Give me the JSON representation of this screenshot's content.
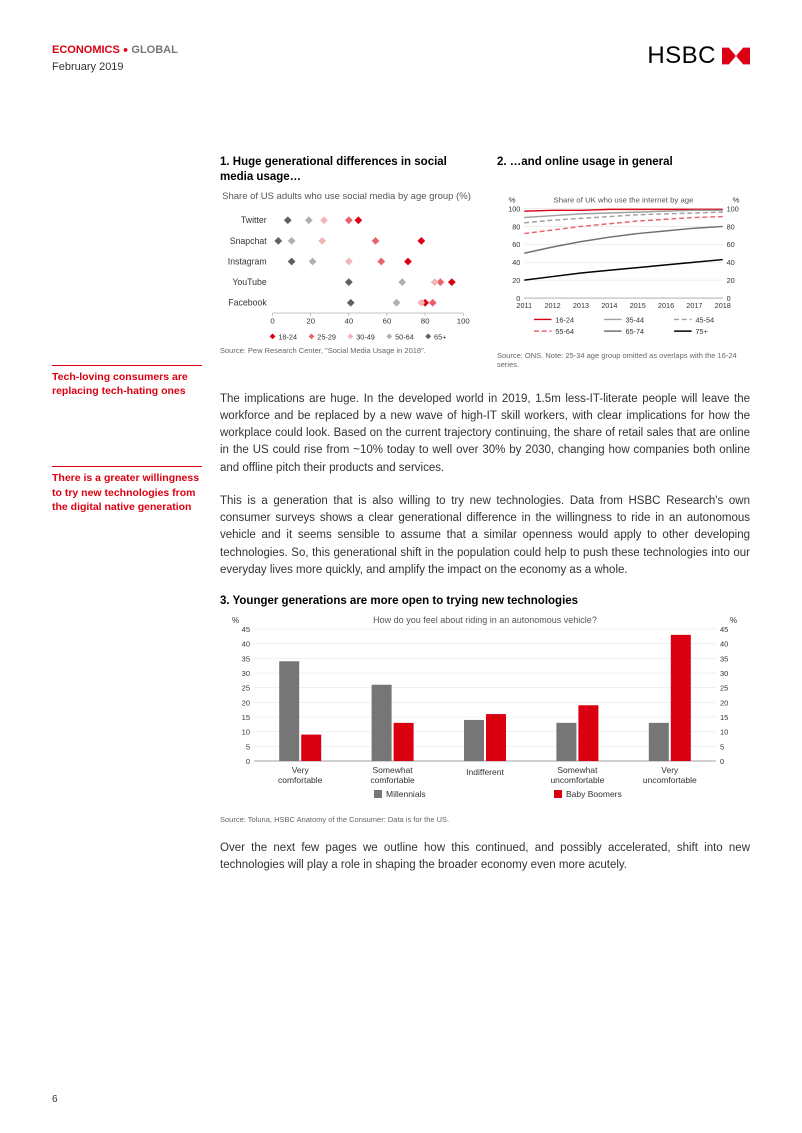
{
  "header": {
    "label_econ": "ECONOMICS",
    "label_global": "GLOBAL",
    "date": "February 2019",
    "brand": "HSBC"
  },
  "sidebar": {
    "note1": "Tech-loving consumers are replacing tech-hating ones",
    "note2": "There is a greater willingness to try new technologies from the digital native generation"
  },
  "chart1": {
    "title": "1. Huge generational differences in social media usage…",
    "subtitle": "Share of US adults who use social media by age group (%)",
    "platforms": [
      "Twitter",
      "Snapchat",
      "Instagram",
      "YouTube",
      "Facebook"
    ],
    "xticks": [
      0,
      20,
      40,
      60,
      80,
      100
    ],
    "legend": [
      "18-24",
      "25-29",
      "30-49",
      "50-64",
      "65+"
    ],
    "legend_colors": [
      "#db0011",
      "#e8636c",
      "#f2b4b8",
      "#b0b0b0",
      "#606060"
    ],
    "series": {
      "Twitter": {
        "18-24": 45,
        "25-29": 40,
        "30-49": 27,
        "50-64": 19,
        "65+": 8
      },
      "Snapchat": {
        "18-24": 78,
        "25-29": 54,
        "30-49": 26,
        "50-64": 10,
        "65+": 3
      },
      "Instagram": {
        "18-24": 71,
        "25-29": 57,
        "30-49": 40,
        "50-64": 21,
        "65+": 10
      },
      "YouTube": {
        "18-24": 94,
        "25-29": 88,
        "30-49": 85,
        "50-64": 68,
        "65+": 40
      },
      "Facebook": {
        "18-24": 80,
        "25-29": 84,
        "30-49": 78,
        "50-64": 65,
        "65+": 41
      }
    },
    "source": "Source: Pew Research Center, \"Social Media Usage in 2018\"."
  },
  "chart2": {
    "title": "2. …and online usage in general",
    "subtitle": "Share of UK who use the internet by age",
    "ylabel_left": "%",
    "ylabel_right": "%",
    "xticks": [
      2011,
      2012,
      2013,
      2014,
      2015,
      2016,
      2017,
      2018
    ],
    "yticks": [
      0,
      20,
      40,
      60,
      80,
      100
    ],
    "legend": [
      "16-24",
      "35-44",
      "45-54",
      "55-64",
      "65-74",
      "75+"
    ],
    "series": {
      "16-24": {
        "color": "#db0011",
        "dash": "none",
        "values": [
          97,
          98,
          98,
          99,
          99,
          99,
          99,
          99
        ]
      },
      "35-44": {
        "color": "#a0a0a0",
        "dash": "none",
        "values": [
          90,
          92,
          94,
          95,
          96,
          97,
          98,
          98
        ]
      },
      "45-54": {
        "color": "#a0a0a0",
        "dash": "5,3",
        "values": [
          84,
          87,
          89,
          91,
          93,
          94,
          95,
          96
        ]
      },
      "55-64": {
        "color": "#e8636c",
        "dash": "5,3",
        "values": [
          72,
          76,
          80,
          83,
          86,
          88,
          90,
          91
        ]
      },
      "65-74": {
        "color": "#707070",
        "dash": "none",
        "values": [
          50,
          57,
          63,
          68,
          72,
          75,
          78,
          80
        ]
      },
      "75+": {
        "color": "#000000",
        "dash": "none",
        "values": [
          20,
          24,
          28,
          31,
          34,
          37,
          40,
          43
        ]
      }
    },
    "source": "Source: ONS. Note: 25-34 age group omitted as overlaps with the 16-24 series."
  },
  "body": {
    "p1": "The implications are huge. In the developed world in 2019, 1.5m less-IT-literate people will leave the workforce and be replaced by a new wave of high-IT skill workers, with clear implications for how the workplace could look. Based on the current trajectory continuing, the share of retail sales that are online in the US could rise from ~10% today to well over 30% by 2030, changing how companies both online and offline pitch their products and services.",
    "p2": "This is a generation that is also willing to try new technologies. Data from HSBC Research's own consumer surveys shows a clear generational difference in the willingness to ride in an autonomous vehicle and it seems sensible to assume that a similar openness would apply to other developing technologies. So, this generational shift in the population could help to push these technologies into our everyday lives more quickly, and amplify the impact on the economy as a whole.",
    "p3": "Over the next few pages we outline how this continued, and possibly accelerated, shift into new technologies will play a role in shaping the broader economy even more acutely."
  },
  "chart3": {
    "title": "3. Younger generations are more open to trying new technologies",
    "subtitle": "How do you feel about riding in an autonomous vehicle?",
    "ylabel": "%",
    "yticks": [
      0,
      5,
      10,
      15,
      20,
      25,
      30,
      35,
      40,
      45
    ],
    "categories": [
      "Very comfortable",
      "Somewhat comfortable",
      "Indifferent",
      "Somewhat uncomfortable",
      "Very uncomfortable"
    ],
    "series": {
      "Millennials": {
        "color": "#767676",
        "values": [
          34,
          26,
          14,
          13,
          13
        ]
      },
      "Baby Boomers": {
        "color": "#db0011",
        "values": [
          9,
          13,
          16,
          19,
          43
        ]
      }
    },
    "legend": [
      "Millennials",
      "Baby Boomers"
    ],
    "source": "Source: Toluna, HSBC Anatomy of the Consumer: Data is for the US."
  },
  "page_number": "6"
}
